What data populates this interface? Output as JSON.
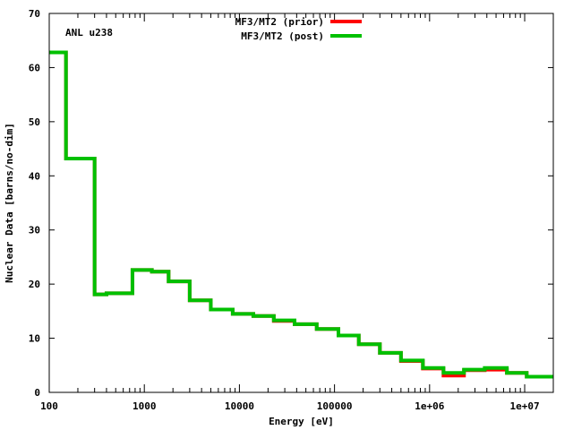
{
  "chart_data": {
    "type": "line",
    "step": true,
    "xlabel": "Energy [eV]",
    "ylabel": "Nuclear Data [barns/no-dim]",
    "annotation": "ANL u238",
    "xscale": "log",
    "xlim": [
      100,
      20000000
    ],
    "ylim": [
      0,
      70
    ],
    "x_ticks": [
      {
        "value": 100,
        "label": "100"
      },
      {
        "value": 1000,
        "label": "1000"
      },
      {
        "value": 10000,
        "label": "10000"
      },
      {
        "value": 100000,
        "label": "100000"
      },
      {
        "value": 1000000,
        "label": "1e+06"
      },
      {
        "value": 10000000,
        "label": "1e+07"
      }
    ],
    "y_ticks": [
      {
        "value": 0,
        "label": "0"
      },
      {
        "value": 10,
        "label": "10"
      },
      {
        "value": 20,
        "label": "20"
      },
      {
        "value": 30,
        "label": "30"
      },
      {
        "value": 40,
        "label": "40"
      },
      {
        "value": 50,
        "label": "50"
      },
      {
        "value": 60,
        "label": "60"
      },
      {
        "value": 70,
        "label": "70"
      }
    ],
    "legend_position": "top-center",
    "series": [
      {
        "name": "MF3/MT2 (prior)",
        "color": "#ff0000",
        "edges": [
          100,
          150,
          300,
          400,
          750,
          1200,
          1800,
          3000,
          5000,
          8500,
          14000,
          23000,
          38000,
          65000,
          110000,
          180000,
          300000,
          500000,
          850000,
          1400000,
          2300000,
          3800000,
          6500000,
          10500000,
          20000000
        ],
        "values": [
          62.8,
          43.2,
          18.1,
          18.3,
          22.6,
          22.3,
          20.5,
          17.0,
          15.3,
          14.5,
          14.1,
          13.2,
          12.6,
          11.7,
          10.5,
          8.9,
          7.3,
          5.8,
          4.4,
          3.1,
          4.1,
          4.2,
          3.6,
          2.9
        ]
      },
      {
        "name": "MF3/MT2 (post)",
        "color": "#00c000",
        "edges": [
          100,
          150,
          300,
          400,
          750,
          1200,
          1800,
          3000,
          5000,
          8500,
          14000,
          23000,
          38000,
          65000,
          110000,
          180000,
          300000,
          500000,
          850000,
          1400000,
          2300000,
          3800000,
          6500000,
          10500000,
          20000000
        ],
        "values": [
          62.8,
          43.2,
          18.1,
          18.3,
          22.6,
          22.3,
          20.5,
          17.0,
          15.3,
          14.5,
          14.1,
          13.3,
          12.6,
          11.7,
          10.5,
          8.9,
          7.3,
          5.9,
          4.5,
          3.6,
          4.2,
          4.5,
          3.6,
          2.9
        ]
      }
    ]
  }
}
